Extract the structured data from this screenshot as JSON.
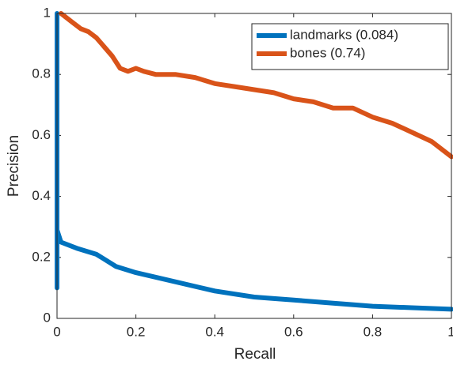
{
  "chart_data": {
    "type": "line",
    "xlabel": "Recall",
    "ylabel": "Precision",
    "xlim": [
      0,
      1
    ],
    "ylim": [
      0,
      1
    ],
    "xticks": [
      0,
      0.2,
      0.4,
      0.6,
      0.8,
      1
    ],
    "yticks": [
      0,
      0.2,
      0.4,
      0.6,
      0.8,
      1
    ],
    "grid": false,
    "legend": "top-right",
    "series": [
      {
        "name": "landmarks (0.084)",
        "color": "#0072bd",
        "x": [
          0,
          0,
          0,
          0.01,
          0.05,
          0.1,
          0.15,
          0.2,
          0.3,
          0.4,
          0.5,
          0.6,
          0.7,
          0.8,
          0.9,
          1.0
        ],
        "values": [
          1,
          0.1,
          0.29,
          0.25,
          0.23,
          0.21,
          0.17,
          0.15,
          0.12,
          0.09,
          0.07,
          0.06,
          0.05,
          0.04,
          0.035,
          0.03
        ]
      },
      {
        "name": "bones (0.74)",
        "color": "#d95319",
        "x": [
          0.01,
          0.04,
          0.06,
          0.08,
          0.1,
          0.12,
          0.14,
          0.16,
          0.18,
          0.2,
          0.22,
          0.25,
          0.28,
          0.3,
          0.35,
          0.4,
          0.45,
          0.5,
          0.55,
          0.6,
          0.65,
          0.7,
          0.75,
          0.8,
          0.85,
          0.9,
          0.95,
          1.0
        ],
        "values": [
          1.0,
          0.97,
          0.95,
          0.94,
          0.92,
          0.89,
          0.86,
          0.82,
          0.81,
          0.82,
          0.81,
          0.8,
          0.8,
          0.8,
          0.79,
          0.77,
          0.76,
          0.75,
          0.74,
          0.72,
          0.71,
          0.69,
          0.69,
          0.66,
          0.64,
          0.61,
          0.58,
          0.53
        ]
      }
    ]
  }
}
